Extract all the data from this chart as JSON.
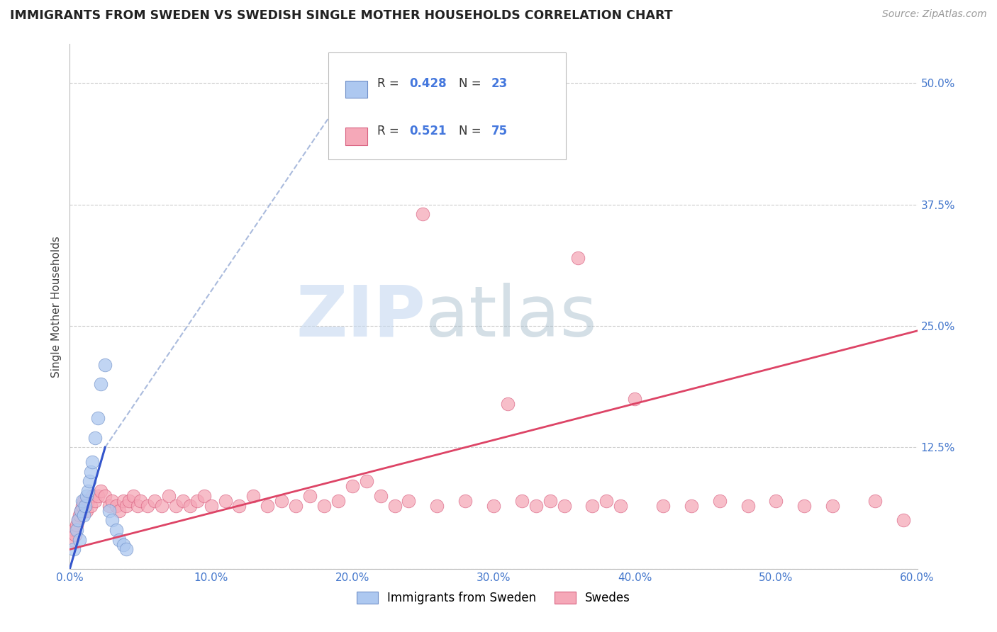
{
  "title": "IMMIGRANTS FROM SWEDEN VS SWEDISH SINGLE MOTHER HOUSEHOLDS CORRELATION CHART",
  "source": "Source: ZipAtlas.com",
  "ylabel": "Single Mother Households",
  "xlim": [
    0.0,
    0.6
  ],
  "ylim": [
    0.0,
    0.54
  ],
  "xticks": [
    0.0,
    0.1,
    0.2,
    0.3,
    0.4,
    0.5,
    0.6
  ],
  "xticklabels": [
    "0.0%",
    "10.0%",
    "20.0%",
    "30.0%",
    "40.0%",
    "50.0%",
    "60.0%"
  ],
  "yticks": [
    0.0,
    0.125,
    0.25,
    0.375,
    0.5
  ],
  "yticklabels": [
    "",
    "12.5%",
    "25.0%",
    "37.5%",
    "50.0%"
  ],
  "grid_color": "#cccccc",
  "background_color": "#ffffff",
  "blue_color": "#adc8f0",
  "pink_color": "#f5a8b8",
  "blue_edge_color": "#7090c8",
  "pink_edge_color": "#d86080",
  "blue_line_color": "#3355cc",
  "blue_dashed_color": "#aabbdd",
  "pink_line_color": "#dd4466",
  "legend_label1": "Immigrants from Sweden",
  "legend_label2": "Swedes",
  "watermark_zip": "ZIP",
  "watermark_atlas": "atlas",
  "blue_scatter_x": [
    0.003,
    0.005,
    0.006,
    0.007,
    0.008,
    0.009,
    0.01,
    0.011,
    0.012,
    0.013,
    0.014,
    0.015,
    0.016,
    0.018,
    0.02,
    0.022,
    0.025,
    0.028,
    0.03,
    0.033,
    0.035,
    0.038,
    0.04
  ],
  "blue_scatter_y": [
    0.02,
    0.04,
    0.05,
    0.03,
    0.06,
    0.07,
    0.055,
    0.065,
    0.075,
    0.08,
    0.09,
    0.1,
    0.11,
    0.135,
    0.155,
    0.19,
    0.21,
    0.06,
    0.05,
    0.04,
    0.03,
    0.025,
    0.02
  ],
  "pink_scatter_x": [
    0.002,
    0.003,
    0.004,
    0.005,
    0.006,
    0.007,
    0.008,
    0.009,
    0.01,
    0.011,
    0.012,
    0.013,
    0.015,
    0.016,
    0.018,
    0.02,
    0.022,
    0.025,
    0.028,
    0.03,
    0.033,
    0.035,
    0.038,
    0.04,
    0.042,
    0.045,
    0.048,
    0.05,
    0.055,
    0.06,
    0.065,
    0.07,
    0.075,
    0.08,
    0.085,
    0.09,
    0.095,
    0.1,
    0.11,
    0.12,
    0.13,
    0.14,
    0.15,
    0.16,
    0.17,
    0.18,
    0.19,
    0.2,
    0.21,
    0.22,
    0.23,
    0.24,
    0.25,
    0.26,
    0.28,
    0.3,
    0.31,
    0.32,
    0.33,
    0.34,
    0.35,
    0.36,
    0.37,
    0.38,
    0.39,
    0.4,
    0.42,
    0.44,
    0.46,
    0.48,
    0.5,
    0.52,
    0.54,
    0.57,
    0.59
  ],
  "pink_scatter_y": [
    0.03,
    0.04,
    0.035,
    0.045,
    0.05,
    0.055,
    0.06,
    0.065,
    0.07,
    0.065,
    0.06,
    0.07,
    0.065,
    0.075,
    0.07,
    0.075,
    0.08,
    0.075,
    0.065,
    0.07,
    0.065,
    0.06,
    0.07,
    0.065,
    0.07,
    0.075,
    0.065,
    0.07,
    0.065,
    0.07,
    0.065,
    0.075,
    0.065,
    0.07,
    0.065,
    0.07,
    0.075,
    0.065,
    0.07,
    0.065,
    0.075,
    0.065,
    0.07,
    0.065,
    0.075,
    0.065,
    0.07,
    0.085,
    0.09,
    0.075,
    0.065,
    0.07,
    0.365,
    0.065,
    0.07,
    0.065,
    0.17,
    0.07,
    0.065,
    0.07,
    0.065,
    0.32,
    0.065,
    0.07,
    0.065,
    0.175,
    0.065,
    0.065,
    0.07,
    0.065,
    0.07,
    0.065,
    0.065,
    0.07,
    0.05
  ],
  "blue_line_x": [
    0.0,
    0.025,
    0.2
  ],
  "blue_line_y_solid_start": 0.0,
  "blue_line_y_solid_end": 0.125,
  "blue_line_solid_x_end": 0.025,
  "blue_line_dashed_x_end": 0.2,
  "blue_line_dashed_y_end": 0.5,
  "pink_line_x_start": 0.0,
  "pink_line_x_end": 0.6,
  "pink_line_y_start": 0.02,
  "pink_line_y_end": 0.245
}
